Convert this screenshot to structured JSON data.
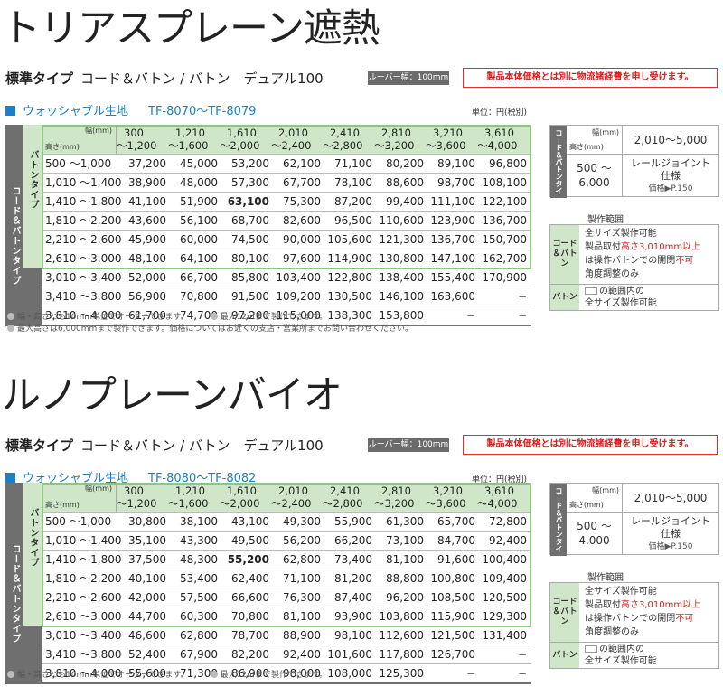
{
  "sections": [
    {
      "title": "トリアスプレーン遮熱",
      "subtitle_std": "標準タイプ",
      "subtitle_rest": "コード＆バトン / バトン　デュアル100",
      "louver": "ルーバー幅：100mm",
      "notice": "製品本体価格とは別に物流諸経費を申し受けます。",
      "fabric_name": "ウォッシャブル生地",
      "fabric_range": "TF-8070〜TF-8079",
      "unit": "単位：円(税別)",
      "vlabel_outer": "コード＆バトンタイプ",
      "vlabel_inner": "バトンタイプ",
      "corner_w": "幅(mm)",
      "corner_h": "高さ(mm)",
      "columns": [
        [
          "300",
          "〜1,200"
        ],
        [
          "1,210",
          "〜1,600"
        ],
        [
          "1,610",
          "〜2,000"
        ],
        [
          "2,010",
          "〜2,400"
        ],
        [
          "2,410",
          "〜2,800"
        ],
        [
          "2,810",
          "〜3,200"
        ],
        [
          "3,210",
          "〜3,600"
        ],
        [
          "3,610",
          "〜4,000"
        ]
      ],
      "rows": [
        {
          "h": "500 〜1,000",
          "v": [
            "37,200",
            "45,000",
            "53,200",
            "62,100",
            "71,100",
            "80,200",
            "89,100",
            "96,800"
          ]
        },
        {
          "h": "1,010 〜1,400",
          "v": [
            "38,900",
            "48,000",
            "57,300",
            "67,700",
            "78,100",
            "88,600",
            "98,700",
            "108,100"
          ]
        },
        {
          "h": "1,410 〜1,800",
          "v": [
            "41,100",
            "51,900",
            "63,100",
            "75,300",
            "87,200",
            "99,400",
            "111,100",
            "122,100"
          ],
          "bold": 2
        },
        {
          "h": "1,810 〜2,200",
          "v": [
            "43,600",
            "56,100",
            "68,700",
            "82,600",
            "96,500",
            "110,600",
            "123,900",
            "136,700"
          ]
        },
        {
          "h": "2,210 〜2,600",
          "v": [
            "45,900",
            "60,000",
            "74,500",
            "90,000",
            "105,600",
            "121,300",
            "136,700",
            "150,700"
          ]
        },
        {
          "h": "2,610 〜3,000",
          "v": [
            "48,100",
            "64,100",
            "80,100",
            "97,600",
            "114,900",
            "130,800",
            "147,100",
            "162,700"
          ]
        },
        {
          "h": "3,010 〜3,400",
          "v": [
            "52,000",
            "66,700",
            "85,800",
            "103,400",
            "122,800",
            "138,400",
            "155,400",
            "170,900"
          ]
        },
        {
          "h": "3,410 〜3,800",
          "v": [
            "56,900",
            "70,800",
            "91,500",
            "109,200",
            "130,500",
            "146,100",
            "163,600",
            "−"
          ]
        },
        {
          "h": "3,810 〜4,000",
          "v": [
            "61,700",
            "74,700",
            "97,200",
            "115,000",
            "138,300",
            "153,800",
            "−",
            "−"
          ]
        }
      ],
      "notes": [
        "幅・高さとも10mm単位でオーダーできます。",
        "最大12㎡まで製作できます。",
        "最大高さは6,000mmまで製作できます。価格についてはお近くの支店・営業所までお問い合わせください。"
      ],
      "side": {
        "vlabel": "コード＆バトンタイプ",
        "w_label": "幅(mm)",
        "h_label": "高さ(mm)",
        "w_range": "2,010〜5,000",
        "h_range_1": "500 〜",
        "h_range_2": "6,000",
        "spec_1": "レールジョイント",
        "spec_2": "仕様",
        "spec_page": "価格▶P.150",
        "seizo": "製作範囲",
        "cb_label": "コード＆バトン",
        "cb_line1": "全サイズ製作可能",
        "cb_line2a": "製品取付",
        "cb_line2b": "高さ3,010mm以上",
        "cb_line3a": "は操作バトンでの開閉",
        "cb_line3b": "不可",
        "cb_line4": "角度調整のみ",
        "b_label": "バトン",
        "b_line1": "の範囲内の",
        "b_line2": "全サイズ製作可能"
      }
    },
    {
      "title": "ルノプレーンバイオ",
      "subtitle_std": "標準タイプ",
      "subtitle_rest": "コード＆バトン / バトン　デュアル100",
      "louver": "ルーバー幅：100mm",
      "notice": "製品本体価格とは別に物流諸経費を申し受けます。",
      "fabric_name": "ウォッシャブル生地",
      "fabric_range": "TF-8080〜TF-8082",
      "unit": "単位：円(税別)",
      "vlabel_outer": "コード＆バトンタイプ",
      "vlabel_inner": "バトンタイプ",
      "corner_w": "幅(mm)",
      "corner_h": "高さ(mm)",
      "columns": [
        [
          "300",
          "〜1,200"
        ],
        [
          "1,210",
          "〜1,600"
        ],
        [
          "1,610",
          "〜2,000"
        ],
        [
          "2,010",
          "〜2,400"
        ],
        [
          "2,410",
          "〜2,800"
        ],
        [
          "2,810",
          "〜3,200"
        ],
        [
          "3,210",
          "〜3,600"
        ],
        [
          "3,610",
          "〜4,000"
        ]
      ],
      "rows": [
        {
          "h": "500 〜1,000",
          "v": [
            "30,800",
            "38,100",
            "43,100",
            "49,300",
            "55,900",
            "61,300",
            "65,700",
            "72,800"
          ]
        },
        {
          "h": "1,010 〜1,400",
          "v": [
            "35,100",
            "43,300",
            "49,500",
            "56,200",
            "66,200",
            "73,100",
            "84,700",
            "92,400"
          ]
        },
        {
          "h": "1,410 〜1,800",
          "v": [
            "37,500",
            "48,300",
            "55,200",
            "62,800",
            "73,400",
            "81,100",
            "91,600",
            "100,400"
          ],
          "bold": 2
        },
        {
          "h": "1,810 〜2,200",
          "v": [
            "40,100",
            "53,400",
            "62,400",
            "71,100",
            "81,200",
            "88,800",
            "100,800",
            "109,400"
          ]
        },
        {
          "h": "2,210 〜2,600",
          "v": [
            "42,000",
            "57,500",
            "66,600",
            "76,300",
            "87,400",
            "96,200",
            "108,500",
            "120,500"
          ]
        },
        {
          "h": "2,610 〜3,000",
          "v": [
            "44,700",
            "60,300",
            "70,800",
            "81,100",
            "93,900",
            "103,800",
            "115,900",
            "129,300"
          ]
        },
        {
          "h": "3,010 〜3,400",
          "v": [
            "46,600",
            "62,800",
            "78,700",
            "88,900",
            "98,100",
            "112,600",
            "121,500",
            "131,400"
          ]
        },
        {
          "h": "3,410 〜3,800",
          "v": [
            "52,400",
            "67,900",
            "82,200",
            "92,400",
            "101,600",
            "117,800",
            "126,700",
            "−"
          ]
        },
        {
          "h": "3,810 〜4,000",
          "v": [
            "55,600",
            "71,300",
            "86,900",
            "98,000",
            "108,000",
            "125,300",
            "−",
            "−"
          ]
        }
      ],
      "notes": [
        "幅・高さとも10mm単位でオーダーできます。",
        "最大12㎡まで製作できます。"
      ],
      "side": {
        "vlabel": "コード＆バトンタイプ",
        "w_label": "幅(mm)",
        "h_label": "高さ(mm)",
        "w_range": "2,010〜5,000",
        "h_range_1": "500 〜",
        "h_range_2": "4,000",
        "spec_1": "レールジョイント",
        "spec_2": "仕様",
        "spec_page": "価格▶P.150",
        "seizo": "製作範囲",
        "cb_label": "コード＆バトン",
        "cb_line1": "全サイズ製作可能",
        "cb_line2a": "製品取付",
        "cb_line2b": "高さ3,010mm以上",
        "cb_line3a": "は操作バトンでの開閉",
        "cb_line3b": "不可",
        "cb_line4": "角度調整のみ",
        "b_label": "バトン",
        "b_line1": "の範囲内の",
        "b_line2": "全サイズ製作可能"
      }
    }
  ]
}
